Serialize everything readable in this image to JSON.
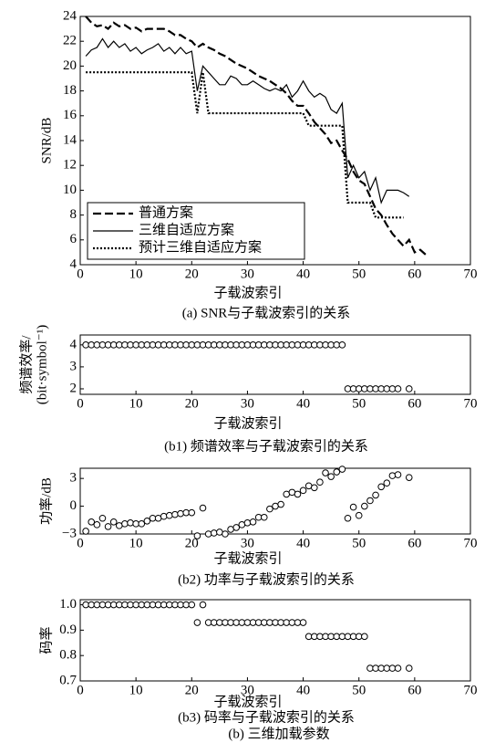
{
  "caption": "(b) 三维加载参数",
  "chart_data": [
    {
      "type": "line",
      "title": "(a) SNR与子载波索引的关系",
      "xlabel": "子载波索引",
      "ylabel": "SNR/dB",
      "legend": "lower left",
      "x": [
        1,
        2,
        3,
        4,
        5,
        6,
        7,
        8,
        9,
        10,
        11,
        12,
        13,
        14,
        15,
        16,
        17,
        18,
        19,
        20,
        21,
        22,
        23,
        24,
        25,
        26,
        27,
        28,
        29,
        30,
        31,
        32,
        33,
        34,
        35,
        36,
        37,
        38,
        39,
        40,
        41,
        42,
        43,
        44,
        45,
        46,
        47,
        48,
        49,
        50,
        51,
        52,
        53,
        54,
        55,
        56,
        57,
        58,
        59,
        60,
        61,
        62
      ],
      "series": [
        {
          "name": "普通方案",
          "color": "#000000",
          "linestyle": "dashed",
          "values": [
            24,
            23.5,
            23.2,
            23.3,
            23,
            23.5,
            23.2,
            23.3,
            23,
            23.1,
            22.8,
            23,
            23,
            23,
            23,
            22.8,
            22.5,
            22.5,
            22.2,
            22,
            21.5,
            21.8,
            21.5,
            21.3,
            21,
            20.8,
            20.5,
            20.2,
            20,
            19.8,
            19.5,
            19.2,
            19,
            18.8,
            18.5,
            18.2,
            17.8,
            17.2,
            16.8,
            16.8,
            16.2,
            15.5,
            15,
            14.5,
            13.8,
            14,
            13.2,
            12.5,
            11.5,
            10.8,
            10.5,
            9.5,
            8.5,
            8,
            7.2,
            6.5,
            6,
            5.5,
            6,
            5,
            5.2,
            4.8
          ]
        },
        {
          "name": "三维自适应方案",
          "color": "#000000",
          "linestyle": "solid",
          "values": [
            20.8,
            21.3,
            21.5,
            22.2,
            21.5,
            22,
            21.5,
            21.8,
            21.2,
            21.5,
            21,
            21.3,
            21.5,
            21.8,
            21.2,
            21.5,
            21,
            21.5,
            21,
            21.2,
            18,
            20,
            19.5,
            19,
            18.5,
            18.5,
            19.2,
            19,
            18.5,
            18.5,
            18.8,
            18.5,
            18.2,
            18,
            18.2,
            18,
            18.5,
            17.5,
            18,
            18.8,
            18,
            17.5,
            17.8,
            17.5,
            16.5,
            16.2,
            17,
            11,
            12,
            11,
            11.5,
            10,
            11,
            9,
            10,
            10,
            10,
            9.8,
            9.5,
            null,
            null,
            null
          ]
        },
        {
          "name": "预计三维自适应方案",
          "color": "#000000",
          "linestyle": "dotted",
          "values": [
            19.5,
            19.5,
            19.5,
            19.5,
            19.5,
            19.5,
            19.5,
            19.5,
            19.5,
            19.5,
            19.5,
            19.5,
            19.5,
            19.5,
            19.5,
            19.5,
            19.5,
            19.5,
            19.5,
            19.5,
            16.2,
            19.5,
            16.2,
            16.2,
            16.2,
            16.2,
            16.2,
            16.2,
            16.2,
            16.2,
            16.2,
            16.2,
            16.2,
            16.2,
            16.2,
            16.2,
            16.2,
            16.2,
            16.2,
            16.2,
            15.2,
            15.2,
            15.2,
            15.2,
            15.2,
            15.2,
            15.2,
            9,
            9,
            9,
            9,
            9,
            7.8,
            7.8,
            7.8,
            7.8,
            7.8,
            7.8,
            null,
            null,
            null,
            null
          ]
        }
      ],
      "xlim": [
        0,
        70
      ],
      "xticks": [
        0,
        10,
        20,
        30,
        40,
        50,
        60,
        70
      ],
      "ylim": [
        4,
        24
      ],
      "yticks": [
        4,
        6,
        8,
        10,
        12,
        14,
        16,
        18,
        20,
        22,
        24
      ]
    },
    {
      "type": "scatter",
      "title": "(b1) 频谱效率与子载波索引的关系",
      "xlabel": "子载波索引",
      "ylabel": [
        "频谱效率/",
        "(bit·symbol⁻¹)"
      ],
      "x": [
        1,
        2,
        3,
        4,
        5,
        6,
        7,
        8,
        9,
        10,
        11,
        12,
        13,
        14,
        15,
        16,
        17,
        18,
        19,
        20,
        21,
        22,
        23,
        24,
        25,
        26,
        27,
        28,
        29,
        30,
        31,
        32,
        33,
        34,
        35,
        36,
        37,
        38,
        39,
        40,
        41,
        42,
        43,
        44,
        45,
        46,
        47,
        48,
        49,
        50,
        51,
        52,
        53,
        54,
        55,
        56,
        57,
        58,
        59
      ],
      "values": [
        4,
        4,
        4,
        4,
        4,
        4,
        4,
        4,
        4,
        4,
        4,
        4,
        4,
        4,
        4,
        4,
        4,
        4,
        4,
        4,
        4,
        4,
        4,
        4,
        4,
        4,
        4,
        4,
        4,
        4,
        4,
        4,
        4,
        4,
        4,
        4,
        4,
        4,
        4,
        4,
        4,
        4,
        4,
        4,
        4,
        4,
        4,
        2,
        2,
        2,
        2,
        2,
        2,
        2,
        2,
        2,
        2,
        null,
        2
      ],
      "color": "#000000",
      "xlim": [
        0,
        70
      ],
      "xticks": [
        0,
        10,
        20,
        30,
        40,
        50,
        60,
        70
      ],
      "ylim": [
        1.75,
        4.45
      ],
      "yticks": [
        2,
        3,
        4
      ]
    },
    {
      "type": "scatter",
      "title": "(b2) 功率与子载波索引的关系",
      "xlabel": "子载波索引",
      "ylabel": "功率/dB",
      "x": [
        1,
        2,
        3,
        4,
        5,
        6,
        7,
        8,
        9,
        10,
        11,
        12,
        13,
        14,
        15,
        16,
        17,
        18,
        19,
        20,
        21,
        22,
        23,
        24,
        25,
        26,
        27,
        28,
        29,
        30,
        31,
        32,
        33,
        34,
        35,
        36,
        37,
        38,
        39,
        40,
        41,
        42,
        43,
        44,
        45,
        46,
        47,
        48,
        49,
        50,
        51,
        52,
        53,
        54,
        55,
        56,
        57,
        58,
        59
      ],
      "values": [
        -2.7,
        -1.7,
        -2,
        -1.3,
        -2.2,
        -1.7,
        -2.1,
        -1.9,
        -1.8,
        -1.9,
        -1.9,
        -1.6,
        -1.3,
        -1.3,
        -1.1,
        -1,
        -0.9,
        -0.8,
        -0.7,
        -0.7,
        -3.2,
        -0.2,
        -3,
        -2.9,
        -2.8,
        -3,
        -2.5,
        -2.3,
        -2,
        -1.8,
        -1.7,
        -1.2,
        -1.2,
        -0.3,
        0,
        0.2,
        1.3,
        1.5,
        1.3,
        1.7,
        2.2,
        2,
        2.6,
        3.6,
        3.2,
        3.7,
        4,
        -1.3,
        -0.1,
        -1,
        0,
        0.6,
        1.2,
        2.1,
        2.5,
        3.3,
        3.4,
        null,
        3.1
      ],
      "color": "#000000",
      "xlim": [
        0,
        70
      ],
      "xticks": [
        0,
        10,
        20,
        30,
        40,
        50,
        60,
        70
      ],
      "ylim": [
        -3,
        4.1
      ],
      "yticks": [
        {
          "value": -3,
          "label": "−3"
        },
        0,
        3
      ]
    },
    {
      "type": "scatter",
      "title": "(b3) 码率与子载波索引的关系",
      "xlabel": "子载波索引",
      "ylabel": "码率",
      "x": [
        1,
        2,
        3,
        4,
        5,
        6,
        7,
        8,
        9,
        10,
        11,
        12,
        13,
        14,
        15,
        16,
        17,
        18,
        19,
        20,
        21,
        22,
        23,
        24,
        25,
        26,
        27,
        28,
        29,
        30,
        31,
        32,
        33,
        34,
        35,
        36,
        37,
        38,
        39,
        40,
        41,
        42,
        43,
        44,
        45,
        46,
        47,
        48,
        49,
        50,
        51,
        52,
        53,
        54,
        55,
        56,
        57,
        58,
        59
      ],
      "values": [
        1,
        1,
        1,
        1,
        1,
        1,
        1,
        1,
        1,
        1,
        1,
        1,
        1,
        1,
        1,
        1,
        1,
        1,
        1,
        1,
        0.93,
        1,
        0.93,
        0.93,
        0.93,
        0.93,
        0.93,
        0.93,
        0.93,
        0.93,
        0.93,
        0.93,
        0.93,
        0.93,
        0.93,
        0.93,
        0.93,
        0.93,
        0.93,
        0.93,
        0.875,
        0.875,
        0.875,
        0.875,
        0.875,
        0.875,
        0.875,
        0.875,
        0.875,
        0.875,
        0.875,
        0.75,
        0.75,
        0.75,
        0.75,
        0.75,
        0.75,
        null,
        0.75
      ],
      "color": "#000000",
      "xlim": [
        0,
        70
      ],
      "xticks": [
        0,
        10,
        20,
        30,
        40,
        50,
        60,
        70
      ],
      "ylim": [
        0.7,
        1.02
      ],
      "yticks": [
        {
          "value": 1,
          "label": "1.0"
        },
        0.9,
        0.8,
        {
          "value": 0.7,
          "label": "0.7"
        }
      ]
    }
  ]
}
